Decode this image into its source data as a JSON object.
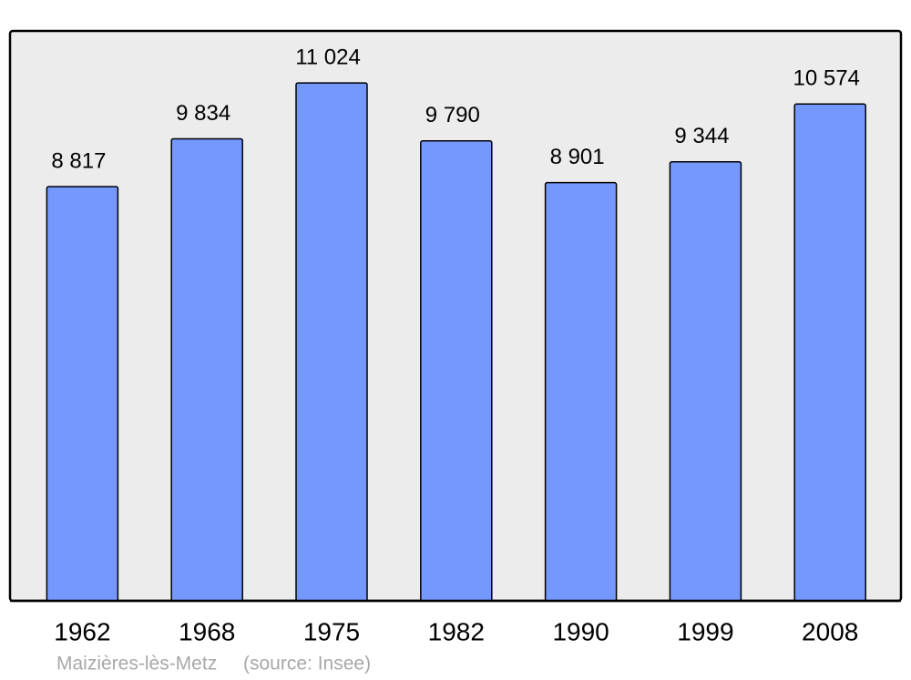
{
  "chart_data": {
    "type": "bar",
    "categories": [
      "1962",
      "1968",
      "1975",
      "1982",
      "1990",
      "1999",
      "2008"
    ],
    "values": [
      8817,
      9834,
      11024,
      9790,
      8901,
      9344,
      10574
    ],
    "value_labels": [
      "8 817",
      "9 834",
      "11 024",
      "9 790",
      "8 901",
      "9 344",
      "10 574"
    ],
    "color": "#7598ff",
    "ylim": [
      0,
      12130
    ],
    "caption": "Maizières-lès-Metz",
    "source": "(source: Insee)"
  }
}
